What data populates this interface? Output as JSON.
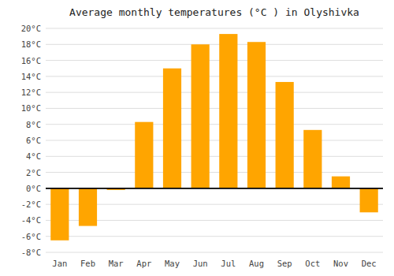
{
  "chart_data": {
    "type": "bar",
    "title": "Average monthly temperatures (°C ) in Olyshivka",
    "categories": [
      "Jan",
      "Feb",
      "Mar",
      "Apr",
      "May",
      "Jun",
      "Jul",
      "Aug",
      "Sep",
      "Oct",
      "Nov",
      "Dec"
    ],
    "values": [
      -6.5,
      -4.7,
      -0.2,
      8.3,
      15.0,
      18.0,
      19.3,
      18.3,
      13.3,
      7.3,
      1.5,
      -3.0
    ],
    "color": "#FFA500",
    "ylim": [
      -8,
      20
    ],
    "yticks": [
      {
        "value": -8,
        "label": "-8°C"
      },
      {
        "value": -6,
        "label": "-6°C"
      },
      {
        "value": -4,
        "label": "-4°C"
      },
      {
        "value": -2,
        "label": "-2°C"
      },
      {
        "value": 0,
        "label": "0°C"
      },
      {
        "value": 2,
        "label": "2°C"
      },
      {
        "value": 4,
        "label": "4°C"
      },
      {
        "value": 6,
        "label": "6°C"
      },
      {
        "value": 8,
        "label": "8°C"
      },
      {
        "value": 10,
        "label": "10°C"
      },
      {
        "value": 12,
        "label": "12°C"
      },
      {
        "value": 14,
        "label": "14°C"
      },
      {
        "value": 16,
        "label": "16°C"
      },
      {
        "value": 18,
        "label": "18°C"
      },
      {
        "value": 20,
        "label": "20°C"
      }
    ],
    "grid": true
  }
}
